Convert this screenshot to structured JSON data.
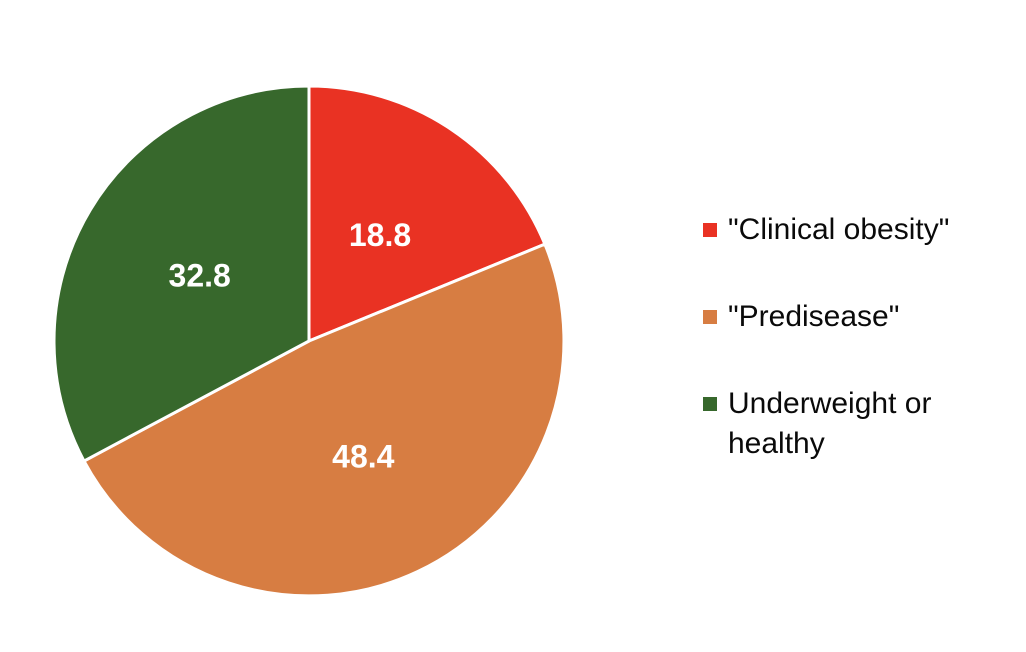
{
  "chart_data": {
    "type": "pie",
    "title": "",
    "series": [
      {
        "name": "\"Clinical obesity\"",
        "value": 18.8,
        "color": "#e93223"
      },
      {
        "name": "\"Predisease\"",
        "value": 48.4,
        "color": "#d77d42"
      },
      {
        "name": "Underweight or healthy",
        "value": 32.8,
        "color": "#37682c"
      }
    ],
    "data_labels": [
      "18.8",
      "48.4",
      "32.8"
    ],
    "data_label_color": "#ffffff",
    "slice_border_color": "#ffffff",
    "start_angle_deg": 0,
    "direction": "clockwise",
    "legend_position": "right",
    "background": "#ffffff"
  }
}
